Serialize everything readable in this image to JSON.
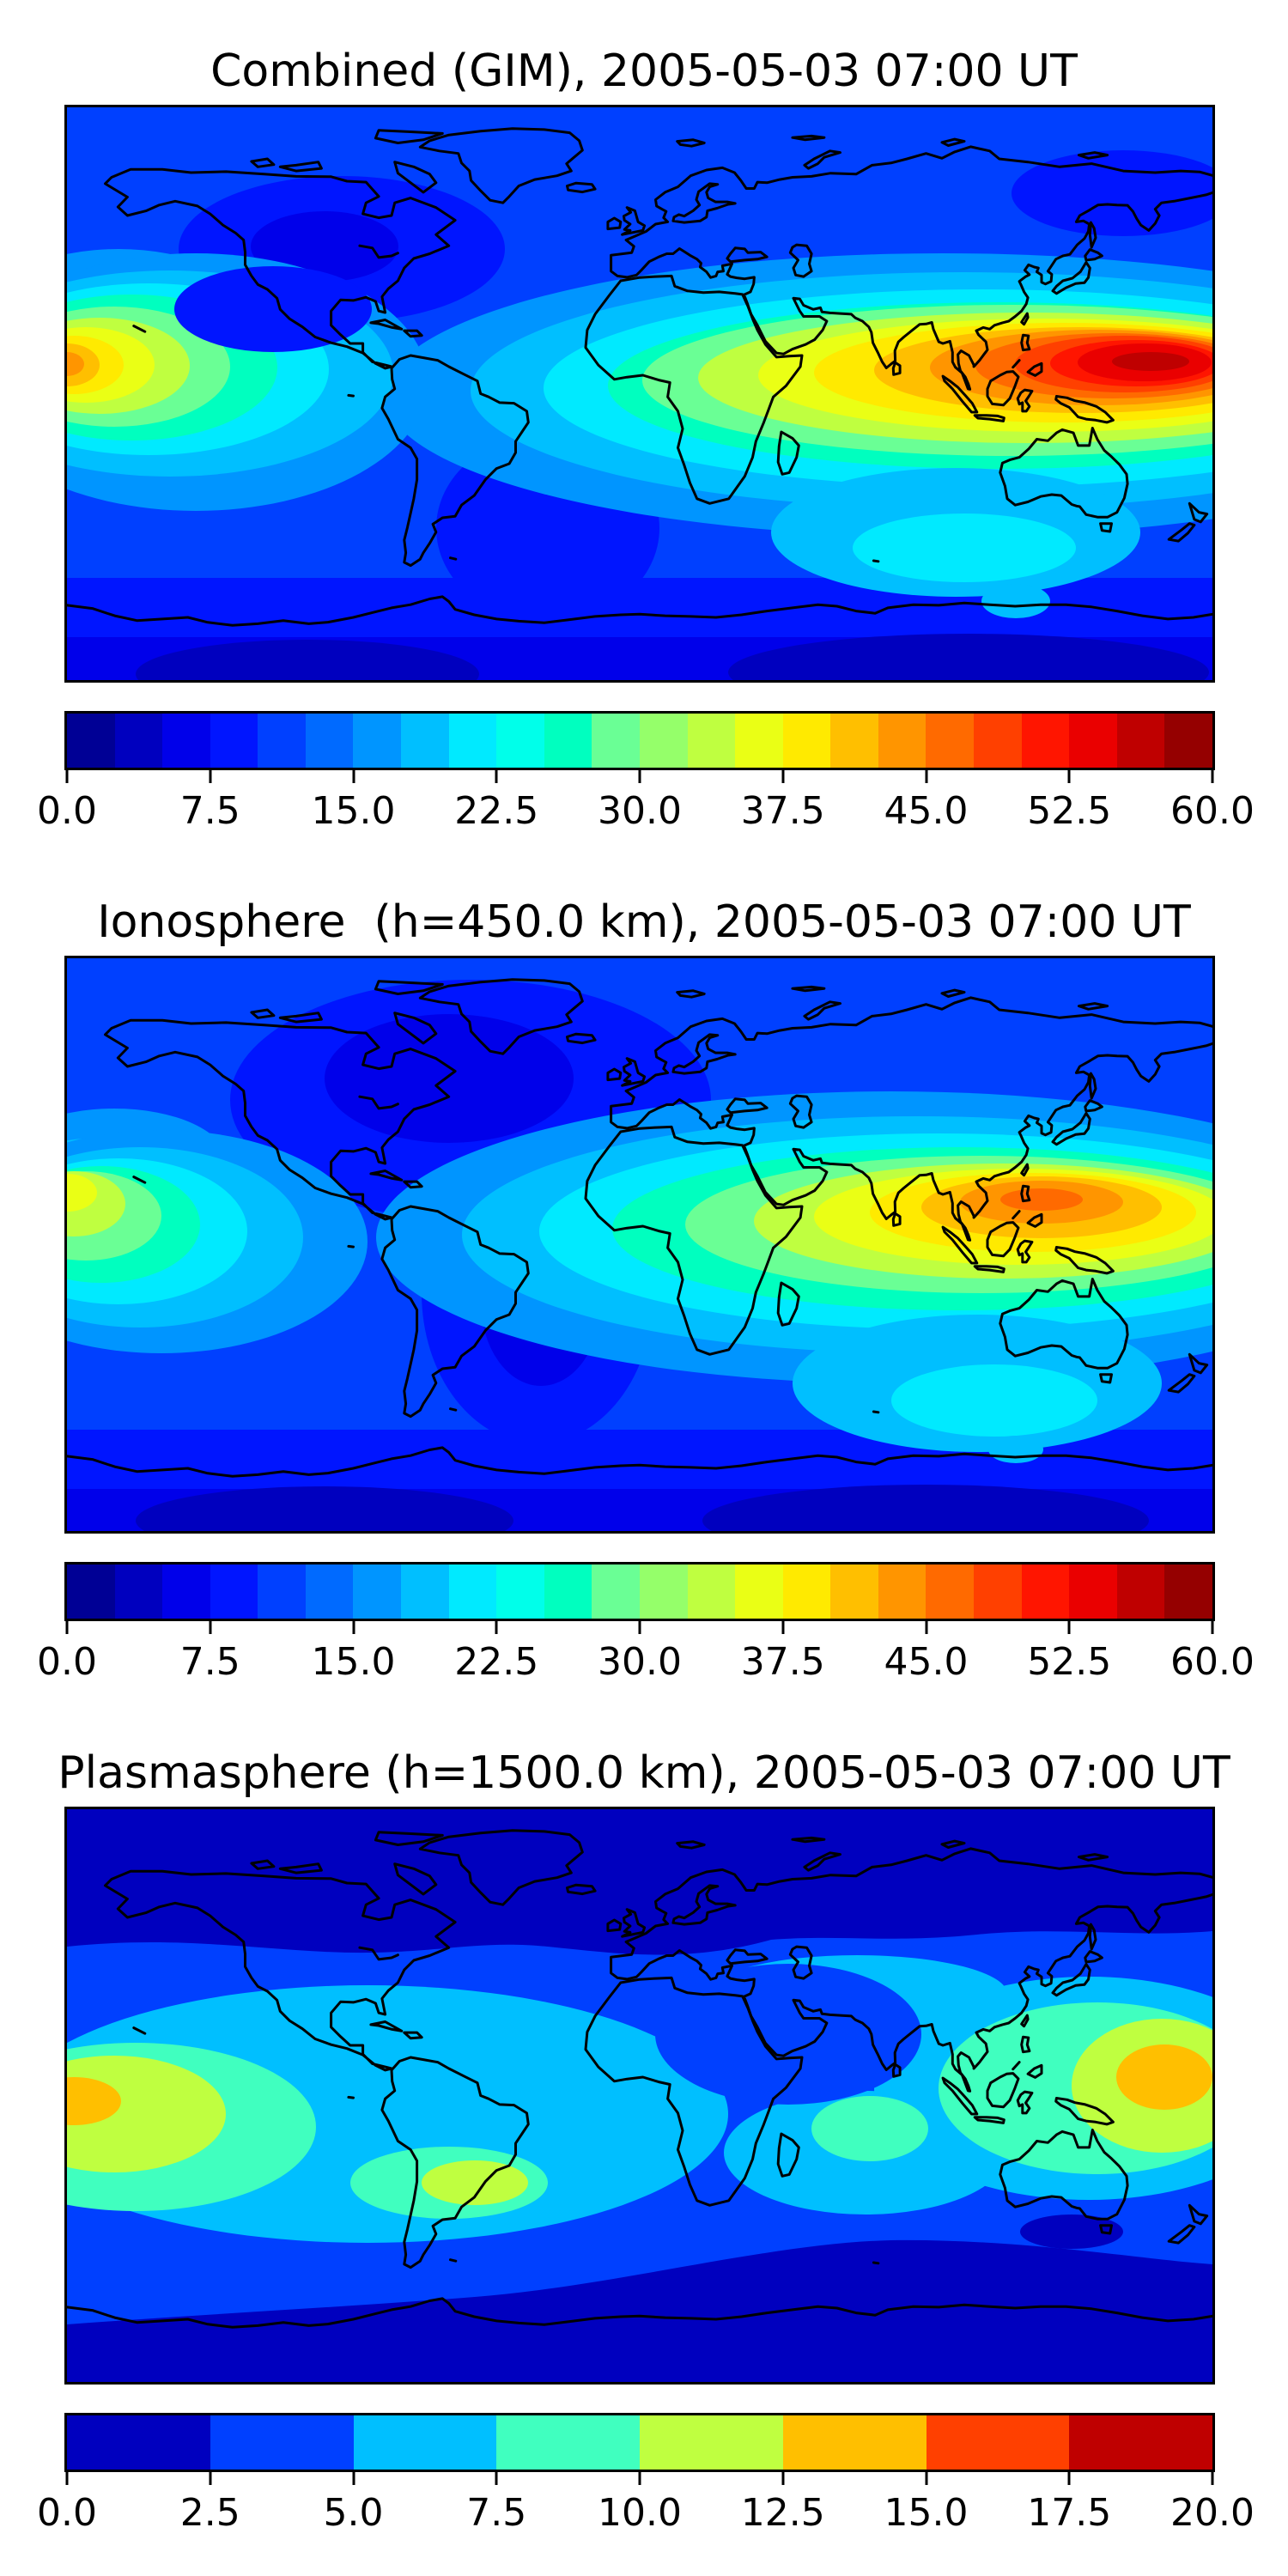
{
  "page": {
    "background": "#ffffff",
    "text_color": "#000000",
    "frame_color": "#000000",
    "coastline_color": "#000000"
  },
  "panels": [
    {
      "id": "combined",
      "title": "Combined (GIM), 2005-05-03 07:00 UT",
      "colorbar": {
        "min": 0.0,
        "max": 60.0,
        "palette": "jet24",
        "ticks": [
          "0.0",
          "7.5",
          "15.0",
          "22.5",
          "30.0",
          "37.5",
          "45.0",
          "52.5",
          "60.0"
        ]
      }
    },
    {
      "id": "ionosphere",
      "title": "Ionosphere  (h=450.0 km), 2005-05-03 07:00 UT",
      "colorbar": {
        "min": 0.0,
        "max": 60.0,
        "palette": "jet24",
        "ticks": [
          "0.0",
          "7.5",
          "15.0",
          "22.5",
          "30.0",
          "37.5",
          "45.0",
          "52.5",
          "60.0"
        ]
      }
    },
    {
      "id": "plasmasphere",
      "title": "Plasmasphere (h=1500.0 km), 2005-05-03 07:00 UT",
      "colorbar": {
        "min": 0.0,
        "max": 20.0,
        "palette": "jet8",
        "ticks": [
          "0.0",
          "2.5",
          "5.0",
          "7.5",
          "10.0",
          "12.5",
          "15.0",
          "17.5",
          "20.0"
        ]
      }
    }
  ],
  "colors": {
    "jet24": [
      "#000095",
      "#0000bf",
      "#0000ea",
      "#0015ff",
      "#0040ff",
      "#006aff",
      "#0095ff",
      "#00bfff",
      "#00eaff",
      "#00ffea",
      "#00ffbf",
      "#6aff95",
      "#95ff6a",
      "#bfff40",
      "#eaff15",
      "#ffea00",
      "#ffbf00",
      "#ff9500",
      "#ff6a00",
      "#ff4000",
      "#ff1500",
      "#ea0000",
      "#bf0000",
      "#950000"
    ],
    "jet8": [
      "#0000bf",
      "#0040ff",
      "#00bfff",
      "#40ffbf",
      "#bfff40",
      "#ffbf00",
      "#ff4000",
      "#bf0000"
    ]
  },
  "chart_data": [
    {
      "type": "heatmap",
      "title": "Combined (GIM), 2005-05-03 07:00 UT",
      "layer": "Combined (GIM)",
      "datetime_ut": "2005-05-03 07:00 UT",
      "projection": "equirectangular world map, lon -180..180, lat -90..90",
      "colormap": "jet, discrete filled contours",
      "contour_interval": 2.5,
      "colorbar_range": [
        0,
        60
      ],
      "colorbar_ticks": [
        0.0,
        7.5,
        15.0,
        22.5,
        30.0,
        37.5,
        45.0,
        52.5,
        60.0
      ],
      "features": [
        {
          "region": "Southeast Asia / western Pacific (~10-25N, 110-180E)",
          "value_est": 55,
          "note": "absolute maximum, deep red core"
        },
        {
          "region": "equatorial central Pacific at left map edge (~15N, 180W)",
          "value_est": 42,
          "note": "secondary maximum, yellow-orange"
        },
        {
          "region": "equatorial Africa / India / Indian Ocean",
          "value_est": 35,
          "note": "yellow-orange band"
        },
        {
          "region": "southern Indian Ocean pocket (~35S, 90E)",
          "value_est": 22,
          "note": "light cyan"
        },
        {
          "region": "high northern and southern latitudes",
          "value_est": 5,
          "note": "dark blue"
        }
      ]
    },
    {
      "type": "heatmap",
      "title": "Ionosphere  (h=450.0 km), 2005-05-03 07:00 UT",
      "layer": "Ionosphere",
      "height_km": 450.0,
      "datetime_ut": "2005-05-03 07:00 UT",
      "projection": "equirectangular world map, lon -180..180, lat -90..90",
      "colormap": "jet, discrete filled contours",
      "contour_interval": 2.5,
      "colorbar_range": [
        0,
        60
      ],
      "colorbar_ticks": [
        0.0,
        7.5,
        15.0,
        22.5,
        30.0,
        37.5,
        45.0,
        52.5,
        60.0
      ],
      "features": [
        {
          "region": "South China Sea / Philippines (~15N, 115-135E)",
          "value_est": 47,
          "note": "maximum, orange core"
        },
        {
          "region": "equatorial central Pacific at left map edge (~15N, 180W)",
          "value_est": 35,
          "note": "green-yellow blob"
        },
        {
          "region": "north Atlantic / North America mid-high latitudes",
          "value_est": 7,
          "note": "dark navy region"
        },
        {
          "region": "southern high latitudes",
          "value_est": 5,
          "note": "dark blue band"
        }
      ]
    },
    {
      "type": "heatmap",
      "title": "Plasmasphere (h=1500.0 km), 2005-05-03 07:00 UT",
      "layer": "Plasmasphere",
      "height_km": 1500.0,
      "datetime_ut": "2005-05-03 07:00 UT",
      "projection": "equirectangular world map, lon -180..180, lat -90..90",
      "colormap": "jet, discrete filled contours",
      "contour_interval": 2.5,
      "colorbar_range": [
        0,
        20
      ],
      "colorbar_ticks": [
        0.0,
        2.5,
        5.0,
        7.5,
        10.0,
        12.5,
        15.0,
        17.5,
        20.0
      ],
      "features": [
        {
          "region": "western Pacific east of Philippines (~10-20N, 150E)",
          "value_est": 16,
          "note": "gold core with green-yellow halo"
        },
        {
          "region": "central Pacific at left map edge (~0-10S, 180W)",
          "value_est": 16,
          "note": "gold core"
        },
        {
          "region": "low/mid-latitude belt around globe",
          "value_est": 7,
          "note": "cyan band with turquoise patches"
        },
        {
          "region": "Sahara / Arabia",
          "value_est": 4,
          "note": "royal blue pocket"
        },
        {
          "region": "polar caps",
          "value_est": 2,
          "note": "dark blue bands"
        }
      ]
    }
  ]
}
